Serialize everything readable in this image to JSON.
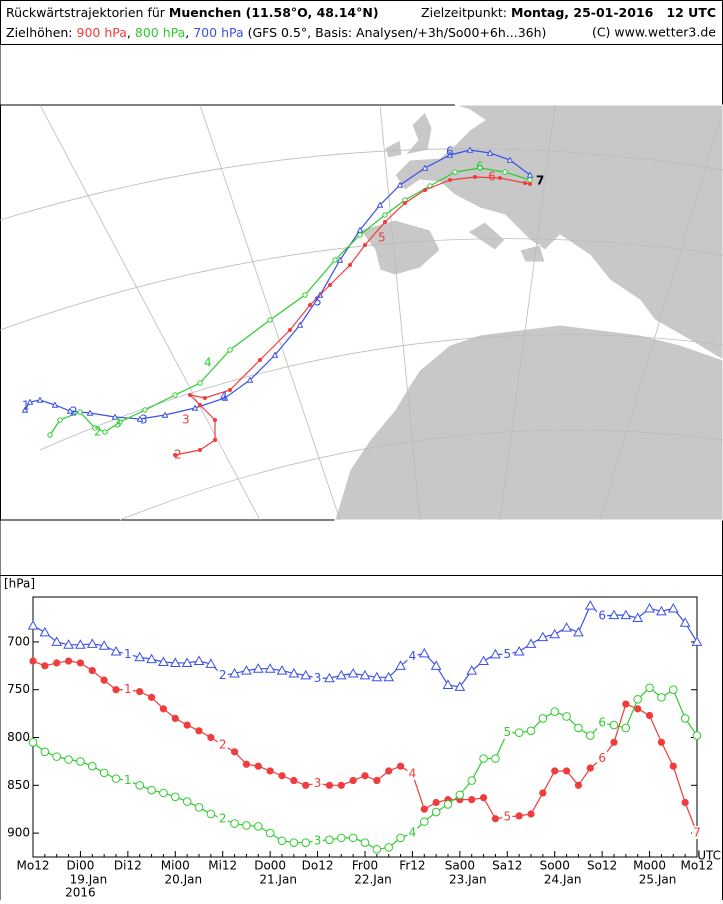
{
  "header": {
    "title_prefix": "Rückwärtstrajektorien für",
    "location": "Muenchen (11.58°O, 48.14°N)",
    "target_label": "Zielzeitpunkt:",
    "target_time": "Montag, 25-01-2016   12 UTC",
    "levels_label": "Zielhöhen:",
    "separator": ",",
    "source": "(GFS 0.5°, Basis: Analysen/+3h/So00+6h...36h)",
    "copyright": "(C) www.wetter3.de"
  },
  "chart_data": {
    "type": "line",
    "ylabel": "[hPa]",
    "x_unit": "UTC",
    "year_label": "2016",
    "categories": [
      "Mo12",
      null,
      null,
      null,
      "Di00",
      null,
      null,
      null,
      "Di12",
      null,
      null,
      null,
      "Mi00",
      null,
      null,
      null,
      "Mi12",
      null,
      null,
      null,
      "Do00",
      null,
      null,
      null,
      "Do12",
      null,
      null,
      null,
      "Fr00",
      null,
      null,
      null,
      "Fr12",
      null,
      null,
      null,
      "Sa00",
      null,
      null,
      null,
      "Sa12",
      null,
      null,
      null,
      "So00",
      null,
      null,
      null,
      "So12",
      null,
      null,
      null,
      "Mo00",
      null,
      null,
      null,
      "Mo12"
    ],
    "x_date_labels": [
      null,
      null,
      null,
      null,
      "19.Jan",
      null,
      null,
      null,
      null,
      null,
      null,
      null,
      "20.Jan",
      null,
      null,
      null,
      null,
      null,
      null,
      null,
      "21.Jan",
      null,
      null,
      null,
      null,
      null,
      null,
      null,
      "22.Jan",
      null,
      null,
      null,
      null,
      null,
      null,
      null,
      "23.Jan",
      null,
      null,
      null,
      null,
      null,
      null,
      null,
      "24.Jan",
      null,
      null,
      null,
      null,
      null,
      null,
      null,
      "25.Jan",
      null,
      null,
      null,
      null
    ],
    "ylim": [
      925,
      653
    ],
    "yticks": [
      700,
      750,
      800,
      850,
      900
    ],
    "series": [
      {
        "name": "900 hPa",
        "color": "#f03c3c",
        "marker": "filled-circle",
        "values": [
          720,
          725,
          722,
          720,
          722,
          730,
          740,
          750,
          750,
          752,
          758,
          770,
          780,
          787,
          793,
          800,
          808,
          815,
          828,
          830,
          835,
          840,
          845,
          850,
          848,
          850,
          850,
          845,
          840,
          845,
          835,
          830,
          838,
          875,
          868,
          865,
          865,
          865,
          863,
          885,
          883,
          882,
          880,
          858,
          835,
          835,
          850,
          832,
          822,
          805,
          765,
          770,
          777,
          805,
          830,
          868,
          900
        ],
        "point_labels": [
          null,
          null,
          null,
          null,
          null,
          null,
          null,
          null,
          "1",
          null,
          null,
          null,
          null,
          null,
          null,
          null,
          "2",
          null,
          null,
          null,
          null,
          null,
          null,
          null,
          "3",
          null,
          null,
          null,
          null,
          null,
          null,
          null,
          "4",
          null,
          null,
          null,
          null,
          null,
          null,
          null,
          "5",
          null,
          null,
          null,
          null,
          null,
          null,
          null,
          "6",
          null,
          null,
          null,
          null,
          null,
          null,
          null,
          "7"
        ]
      },
      {
        "name": "800 hPa",
        "color": "#2ecc2e",
        "marker": "open-circle",
        "values": [
          805,
          815,
          820,
          823,
          825,
          830,
          837,
          843,
          845,
          850,
          855,
          858,
          862,
          867,
          873,
          880,
          885,
          890,
          892,
          893,
          900,
          908,
          910,
          910,
          908,
          907,
          905,
          905,
          910,
          917,
          915,
          905,
          900,
          888,
          878,
          870,
          860,
          845,
          822,
          822,
          795,
          795,
          793,
          780,
          773,
          778,
          790,
          798,
          785,
          787,
          790,
          760,
          748,
          758,
          750,
          780,
          798
        ],
        "point_labels": [
          null,
          null,
          null,
          null,
          null,
          null,
          null,
          null,
          "1",
          null,
          null,
          null,
          null,
          null,
          null,
          null,
          "2",
          null,
          null,
          null,
          null,
          null,
          null,
          null,
          "3",
          null,
          null,
          null,
          null,
          null,
          null,
          null,
          "4",
          null,
          null,
          null,
          null,
          null,
          null,
          null,
          "5",
          null,
          null,
          null,
          null,
          null,
          null,
          null,
          "6",
          null,
          null,
          null,
          null,
          null,
          null,
          null,
          null
        ]
      },
      {
        "name": "700 hPa",
        "color": "#3c50e6",
        "marker": "open-triangle",
        "values": [
          683,
          690,
          700,
          703,
          703,
          702,
          704,
          710,
          713,
          716,
          718,
          721,
          722,
          722,
          720,
          723,
          735,
          733,
          730,
          728,
          728,
          730,
          733,
          735,
          738,
          738,
          735,
          733,
          735,
          737,
          737,
          725,
          715,
          712,
          725,
          745,
          747,
          730,
          720,
          713,
          713,
          710,
          702,
          695,
          692,
          685,
          690,
          662,
          673,
          672,
          672,
          675,
          665,
          668,
          665,
          680,
          700
        ],
        "point_labels": [
          null,
          null,
          null,
          null,
          null,
          null,
          null,
          null,
          "1",
          null,
          null,
          null,
          null,
          null,
          null,
          null,
          "2",
          null,
          null,
          null,
          null,
          null,
          null,
          null,
          "3",
          null,
          null,
          null,
          null,
          null,
          null,
          null,
          "4",
          null,
          null,
          null,
          null,
          null,
          null,
          null,
          "5",
          null,
          null,
          null,
          null,
          null,
          null,
          null,
          "6",
          null,
          null,
          null,
          null,
          null,
          null,
          null,
          null
        ]
      }
    ]
  }
}
